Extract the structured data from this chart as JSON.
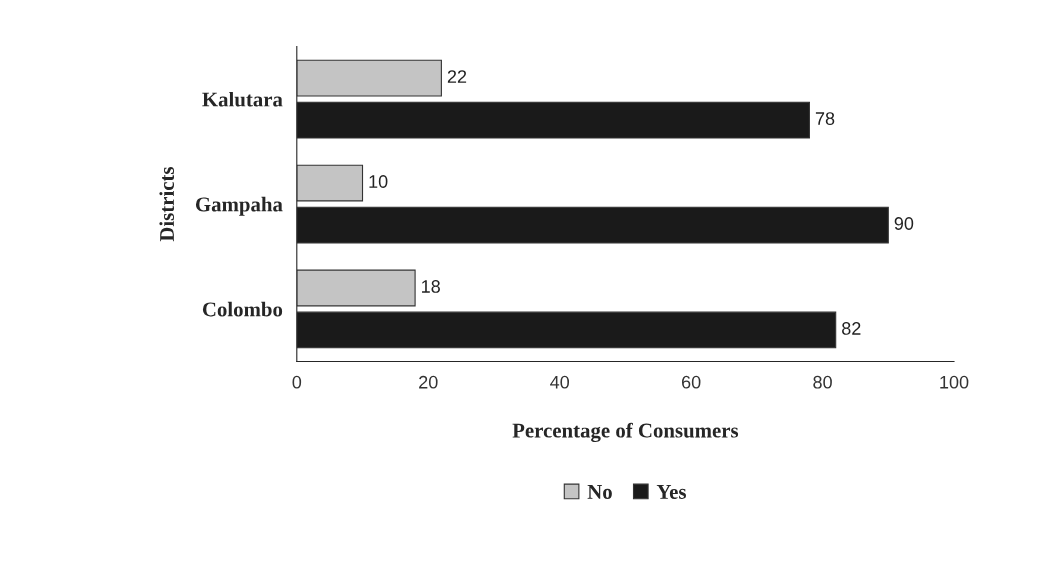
{
  "chart_data": {
    "type": "bar",
    "orientation": "horizontal",
    "xlabel": "Percentage of Consumers",
    "ylabel": "Districts",
    "categories": [
      "Kalutara",
      "Gampaha",
      "Colombo"
    ],
    "series": [
      {
        "name": "No",
        "color": "#c4c4c4",
        "values": [
          22,
          10,
          18
        ]
      },
      {
        "name": "Yes",
        "color": "#1a1a1a",
        "values": [
          78,
          90,
          82
        ]
      }
    ],
    "xlim": [
      0,
      100
    ],
    "xticks": [
      0,
      20,
      40,
      60,
      80,
      100
    ],
    "data_labels": true,
    "legend": "bottom",
    "grid": false
  }
}
